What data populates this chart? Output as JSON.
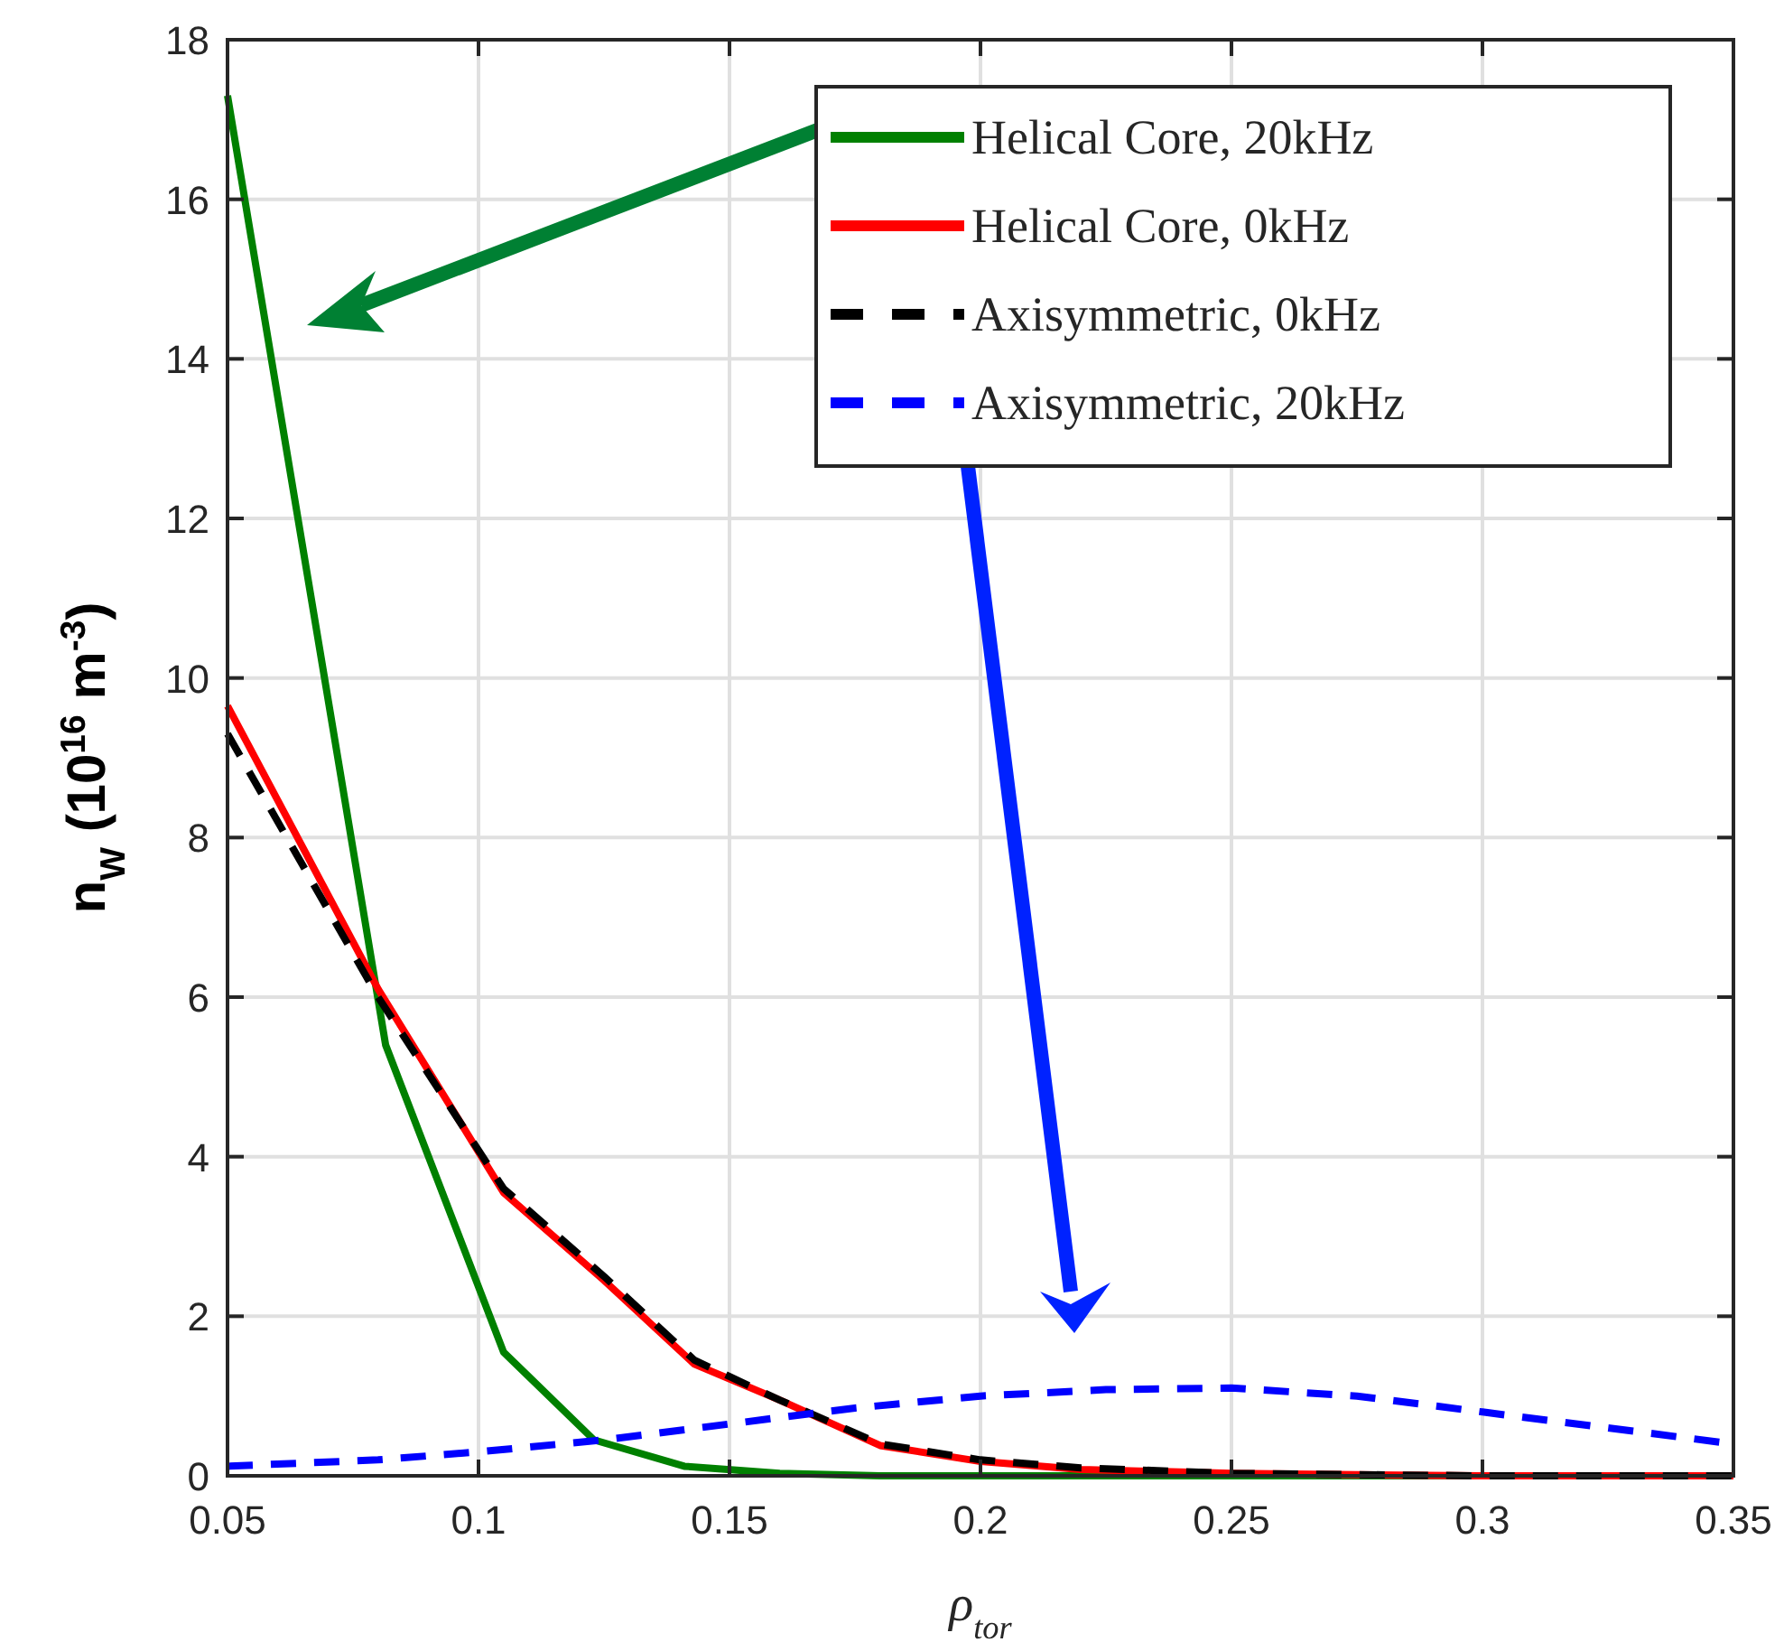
{
  "chart_data": {
    "type": "line",
    "xlabel": "ρ$_{tor}$",
    "ylabel": "n$_{W}$ (10$^{16}$ m$^{-3}$)",
    "xlim": [
      0.05,
      0.35
    ],
    "xticks": [
      0.05,
      0.1,
      0.15,
      0.2,
      0.25,
      0.3,
      0.35
    ],
    "ylim": [
      0,
      18
    ],
    "yticks": [
      0,
      2,
      4,
      6,
      8,
      10,
      12,
      14,
      16,
      18
    ],
    "grid": true,
    "legend": "top right",
    "marker": "none",
    "series": [
      {
        "name": "Helical Core, 20kHz",
        "color": "#008000",
        "line_style": "solid",
        "x": [
          0.05,
          0.0815,
          0.105,
          0.123,
          0.141,
          0.16,
          0.18,
          0.2,
          0.35
        ],
        "values": [
          17.3,
          5.4,
          1.55,
          0.45,
          0.12,
          0.03,
          0,
          0,
          0
        ]
      },
      {
        "name": "Helical Core, 0kHz",
        "color": "#ff0000",
        "line_style": "solid",
        "x": [
          0.05,
          0.08,
          0.105,
          0.125,
          0.143,
          0.16,
          0.18,
          0.2,
          0.22,
          0.25,
          0.3,
          0.35
        ],
        "values": [
          9.65,
          6.1,
          3.55,
          2.45,
          1.4,
          0.95,
          0.38,
          0.18,
          0.08,
          0.03,
          0,
          0
        ]
      },
      {
        "name": "Axisymmetric, 0kHz",
        "color": "#000000",
        "line_style": "dashed",
        "x": [
          0.05,
          0.08,
          0.105,
          0.125,
          0.143,
          0.16,
          0.18,
          0.2,
          0.22,
          0.25,
          0.3,
          0.35
        ],
        "values": [
          9.3,
          6.0,
          3.6,
          2.5,
          1.45,
          0.95,
          0.4,
          0.2,
          0.1,
          0.03,
          0,
          0
        ]
      },
      {
        "name": "Axisymmetric, 20kHz",
        "color": "#0000ff",
        "line_style": "dashed",
        "x": [
          0.05,
          0.08,
          0.1,
          0.125,
          0.15,
          0.175,
          0.2,
          0.225,
          0.25,
          0.275,
          0.3,
          0.325,
          0.35
        ],
        "values": [
          0.12,
          0.2,
          0.3,
          0.45,
          0.65,
          0.85,
          1.0,
          1.08,
          1.1,
          1.0,
          0.8,
          0.6,
          0.4
        ]
      }
    ]
  }
}
